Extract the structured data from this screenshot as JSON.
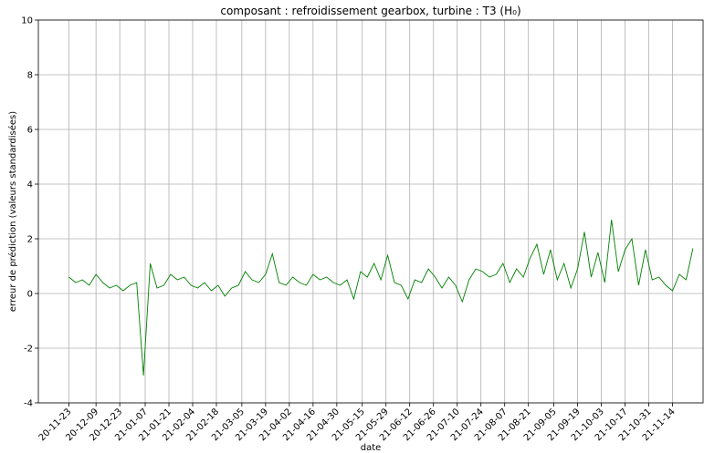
{
  "chart_data": {
    "type": "line",
    "title": "composant : refroidissement gearbox, turbine : T3 (H₀)",
    "x_label": "date",
    "y_label": "erreur de prédiction (valeurs standardisées)",
    "grid": true,
    "xlim": [
      "2020-11-05",
      "2021-12-02"
    ],
    "ylim": [
      -4,
      10
    ],
    "yticks": [
      -4,
      -2,
      0,
      2,
      4,
      6,
      8,
      10
    ],
    "xticks": [
      {
        "value": "2020-11-23",
        "label": "20-11-23"
      },
      {
        "value": "2020-12-09",
        "label": "20-12-09"
      },
      {
        "value": "2020-12-23",
        "label": "20-12-23"
      },
      {
        "value": "2021-01-07",
        "label": "21-01-07"
      },
      {
        "value": "2021-01-21",
        "label": "21-01-21"
      },
      {
        "value": "2021-02-04",
        "label": "21-02-04"
      },
      {
        "value": "2021-02-18",
        "label": "21-02-18"
      },
      {
        "value": "2021-03-05",
        "label": "21-03-05"
      },
      {
        "value": "2021-03-19",
        "label": "21-03-19"
      },
      {
        "value": "2021-04-02",
        "label": "21-04-02"
      },
      {
        "value": "2021-04-16",
        "label": "21-04-16"
      },
      {
        "value": "2021-04-30",
        "label": "21-04-30"
      },
      {
        "value": "2021-05-15",
        "label": "21-05-15"
      },
      {
        "value": "2021-05-29",
        "label": "21-05-29"
      },
      {
        "value": "2021-06-12",
        "label": "21-06-12"
      },
      {
        "value": "2021-06-26",
        "label": "21-06-26"
      },
      {
        "value": "2021-07-10",
        "label": "21-07-10"
      },
      {
        "value": "2021-07-24",
        "label": "21-07-24"
      },
      {
        "value": "2021-08-07",
        "label": "21-08-07"
      },
      {
        "value": "2021-08-21",
        "label": "21-08-21"
      },
      {
        "value": "2021-09-05",
        "label": "21-09-05"
      },
      {
        "value": "2021-09-19",
        "label": "21-09-19"
      },
      {
        "value": "2021-10-03",
        "label": "21-10-03"
      },
      {
        "value": "2021-10-17",
        "label": "21-10-17"
      },
      {
        "value": "2021-10-31",
        "label": "21-10-31"
      },
      {
        "value": "2021-11-14",
        "label": "21-11-14"
      }
    ],
    "x": [
      "2020-11-23",
      "2020-11-27",
      "2020-12-01",
      "2020-12-05",
      "2020-12-09",
      "2020-12-13",
      "2020-12-17",
      "2020-12-21",
      "2020-12-25",
      "2020-12-29",
      "2021-01-02",
      "2021-01-06",
      "2021-01-10",
      "2021-01-14",
      "2021-01-18",
      "2021-01-22",
      "2021-01-26",
      "2021-01-30",
      "2021-02-03",
      "2021-02-07",
      "2021-02-11",
      "2021-02-15",
      "2021-02-19",
      "2021-02-23",
      "2021-02-27",
      "2021-03-03",
      "2021-03-07",
      "2021-03-11",
      "2021-03-15",
      "2021-03-19",
      "2021-03-23",
      "2021-03-27",
      "2021-03-31",
      "2021-04-04",
      "2021-04-08",
      "2021-04-12",
      "2021-04-16",
      "2021-04-20",
      "2021-04-24",
      "2021-04-28",
      "2021-05-02",
      "2021-05-06",
      "2021-05-10",
      "2021-05-14",
      "2021-05-18",
      "2021-05-22",
      "2021-05-26",
      "2021-05-30",
      "2021-06-03",
      "2021-06-07",
      "2021-06-11",
      "2021-06-15",
      "2021-06-19",
      "2021-06-23",
      "2021-06-27",
      "2021-07-01",
      "2021-07-05",
      "2021-07-09",
      "2021-07-13",
      "2021-07-17",
      "2021-07-21",
      "2021-07-25",
      "2021-07-29",
      "2021-08-02",
      "2021-08-06",
      "2021-08-10",
      "2021-08-14",
      "2021-08-18",
      "2021-08-22",
      "2021-08-26",
      "2021-08-30",
      "2021-09-03",
      "2021-09-07",
      "2021-09-11",
      "2021-09-15",
      "2021-09-19",
      "2021-09-23",
      "2021-09-27",
      "2021-10-01",
      "2021-10-05",
      "2021-10-09",
      "2021-10-13",
      "2021-10-17",
      "2021-10-21",
      "2021-10-25",
      "2021-10-29",
      "2021-11-02",
      "2021-11-06",
      "2021-11-10",
      "2021-11-14",
      "2021-11-18",
      "2021-11-22",
      "2021-11-26"
    ],
    "series": [
      {
        "color": "#008000",
        "values": [
          0.6,
          0.4,
          0.5,
          0.3,
          0.7,
          0.4,
          0.2,
          0.3,
          0.1,
          0.3,
          0.4,
          -3.0,
          1.1,
          0.2,
          0.3,
          0.7,
          0.5,
          0.6,
          0.3,
          0.2,
          0.4,
          0.1,
          0.3,
          -0.1,
          0.2,
          0.3,
          0.8,
          0.5,
          0.4,
          0.7,
          1.45,
          0.4,
          0.3,
          0.6,
          0.4,
          0.3,
          0.7,
          0.5,
          0.6,
          0.4,
          0.3,
          0.5,
          -0.2,
          0.8,
          0.6,
          1.1,
          0.5,
          1.4,
          0.4,
          0.3,
          -0.2,
          0.5,
          0.4,
          0.9,
          0.6,
          0.2,
          0.6,
          0.3,
          -0.3,
          0.5,
          0.9,
          0.8,
          0.6,
          0.7,
          1.1,
          0.4,
          0.9,
          0.6,
          1.3,
          1.8,
          0.7,
          1.6,
          0.5,
          1.1,
          0.2,
          0.9,
          2.25,
          0.6,
          1.5,
          0.4,
          2.7,
          0.8,
          1.6,
          2.0,
          0.3,
          1.6,
          0.5,
          0.6,
          0.3,
          0.1,
          0.7,
          0.5,
          1.65
        ]
      }
    ]
  }
}
